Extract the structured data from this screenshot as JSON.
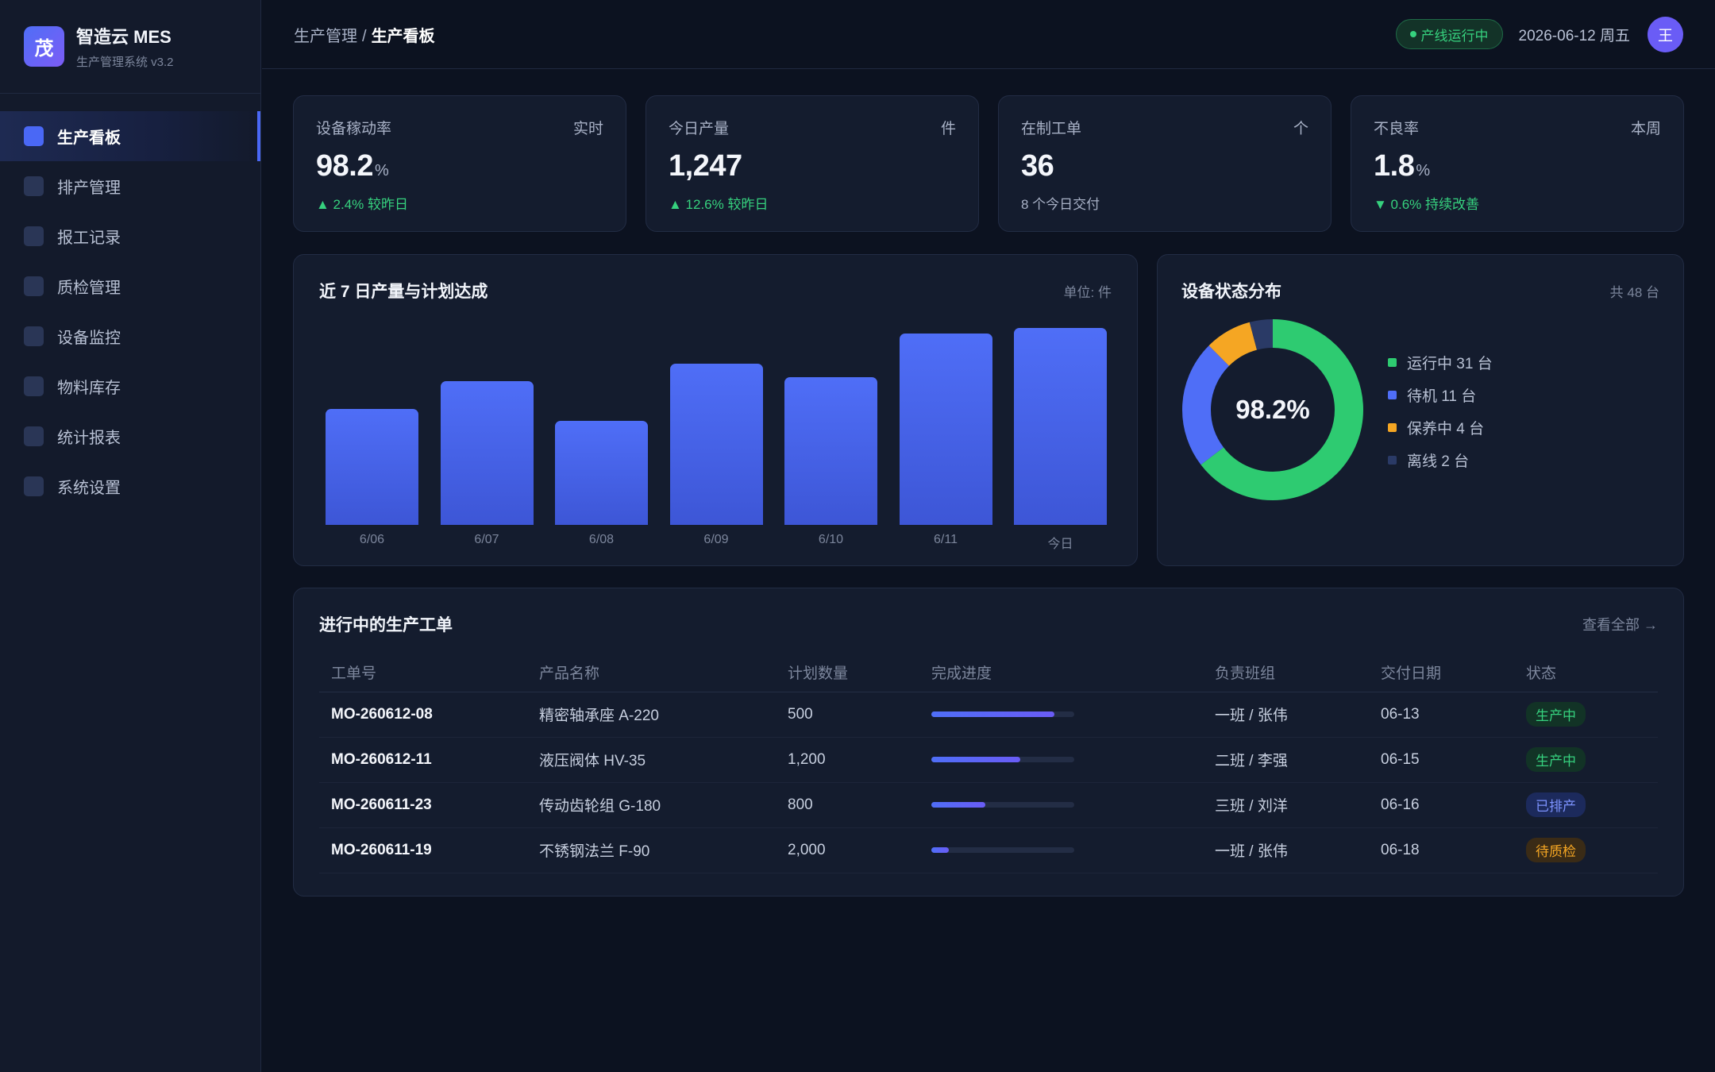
{
  "brand": {
    "logo_char": "茂",
    "name": "智造云 MES",
    "subtitle": "生产管理系统 v3.2"
  },
  "nav": [
    {
      "label": "生产看板",
      "active": true,
      "icon": "dashboard-icon"
    },
    {
      "label": "排产管理",
      "active": false,
      "icon": "schedule-icon"
    },
    {
      "label": "报工记录",
      "active": false,
      "icon": "report-icon"
    },
    {
      "label": "质检管理",
      "active": false,
      "icon": "quality-icon"
    },
    {
      "label": "设备监控",
      "active": false,
      "icon": "equipment-icon"
    },
    {
      "label": "物料库存",
      "active": false,
      "icon": "inventory-icon"
    },
    {
      "label": "统计报表",
      "active": false,
      "icon": "statistics-icon"
    },
    {
      "label": "系统设置",
      "active": false,
      "icon": "settings-icon"
    }
  ],
  "header": {
    "breadcrumb_parent": "生产管理",
    "breadcrumb_sep": "/",
    "breadcrumb_current": "生产看板",
    "status": "产线运行中",
    "date": "2026-06-12 周五",
    "avatar": "王"
  },
  "kpis": [
    {
      "label": "设备稼动率",
      "tag": "实时",
      "value": "98.2",
      "unit": "%",
      "foot": "▲ 2.4% 较昨日",
      "foot_type": "up"
    },
    {
      "label": "今日产量",
      "tag": "件",
      "value": "1,247",
      "unit": "",
      "foot": "▲ 12.6% 较昨日",
      "foot_type": "up"
    },
    {
      "label": "在制工单",
      "tag": "个",
      "value": "36",
      "unit": "",
      "foot": "8 个今日交付",
      "foot_type": "neutral"
    },
    {
      "label": "不良率",
      "tag": "本周",
      "value": "1.8",
      "unit": "%",
      "foot": "▼ 0.6% 持续改善",
      "foot_type": "down"
    }
  ],
  "production_chart": {
    "title": "近 7 日产量与计划达成",
    "unit_label": "单位: 件"
  },
  "chart_data": {
    "type": "bar",
    "categories": [
      "6/06",
      "6/07",
      "6/08",
      "6/09",
      "6/10",
      "6/11",
      "今日"
    ],
    "values": [
      0.59,
      0.73,
      0.53,
      0.82,
      0.75,
      0.97,
      1.0
    ],
    "title": "近 7 日产量与计划达成",
    "xlabel": "",
    "ylabel": "",
    "bar_color": "#4f6ef7"
  },
  "equipment": {
    "title": "设备状态分布",
    "total_label": "共 48 台",
    "center_value": "98.2%",
    "segments": [
      {
        "label": "运行中 31 台",
        "value": 31,
        "color": "#2ecb71"
      },
      {
        "label": "待机 11 台",
        "value": 11,
        "color": "#4f6ef7"
      },
      {
        "label": "保养中 4 台",
        "value": 4,
        "color": "#f5a623"
      },
      {
        "label": "离线 2 台",
        "value": 2,
        "color": "#2a3a66"
      }
    ]
  },
  "orders": {
    "title": "进行中的生产工单",
    "view_all": "查看全部 →",
    "columns": [
      "工单号",
      "产品名称",
      "计划数量",
      "完成进度",
      "负责班组",
      "交付日期",
      "状态"
    ],
    "rows": [
      {
        "id": "MO-260612-08",
        "product": "精密轴承座 A-220",
        "qty": "500",
        "progress": 0.86,
        "team": "一班 / 张伟",
        "due": "06-13",
        "status": "生产中",
        "status_color": "#36d17e",
        "status_bg": "#123326"
      },
      {
        "id": "MO-260612-11",
        "product": "液压阀体 HV-35",
        "qty": "1,200",
        "progress": 0.62,
        "team": "二班 / 李强",
        "due": "06-15",
        "status": "生产中",
        "status_color": "#36d17e",
        "status_bg": "#123326"
      },
      {
        "id": "MO-260611-23",
        "product": "传动齿轮组 G-180",
        "qty": "800",
        "progress": 0.38,
        "team": "三班 / 刘洋",
        "due": "06-16",
        "status": "已排产",
        "status_color": "#7d93ff",
        "status_bg": "#1c2a5c"
      },
      {
        "id": "MO-260611-19",
        "product": "不锈钢法兰 F-90",
        "qty": "2,000",
        "progress": 0.12,
        "team": "一班 / 张伟",
        "due": "06-18",
        "status": "待质检",
        "status_color": "#f5a623",
        "status_bg": "#3a2b16"
      }
    ]
  }
}
